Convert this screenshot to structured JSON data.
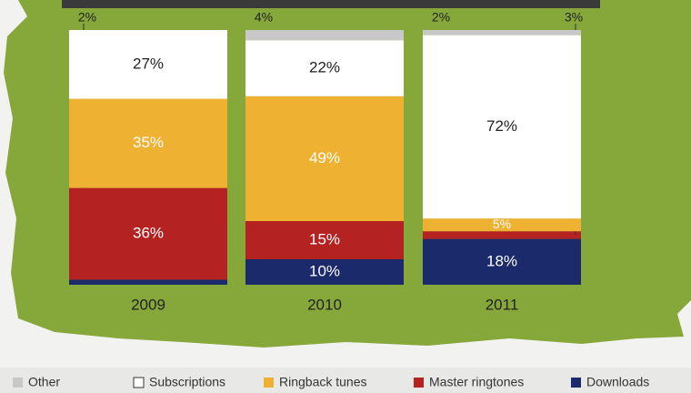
{
  "chart_data": {
    "type": "stacked_bar",
    "categories": [
      "2009",
      "2010",
      "2011"
    ],
    "ylim": [
      0,
      100
    ],
    "series": [
      {
        "name": "Other",
        "color": "#c8c8c8",
        "values": [
          0,
          4,
          2
        ],
        "value_labels": [
          null,
          "4%",
          "2%"
        ]
      },
      {
        "name": "Subscriptions",
        "color": "#ffffff",
        "values": [
          27,
          22,
          72
        ],
        "value_labels": [
          "27%",
          "22%",
          "72%"
        ]
      },
      {
        "name": "Ringback tunes",
        "color": "#efb131",
        "values": [
          35,
          49,
          5
        ],
        "value_labels": [
          "35%",
          "49%",
          "5%"
        ]
      },
      {
        "name": "Master ringtones",
        "color": "#b52222",
        "values": [
          36,
          15,
          3
        ],
        "value_labels": [
          "36%",
          "15%",
          "3%"
        ]
      },
      {
        "name": "Downloads",
        "color": "#1b2a6b",
        "values": [
          2,
          10,
          18
        ],
        "value_labels": [
          "2%",
          "10%",
          "18%"
        ]
      }
    ]
  }
}
